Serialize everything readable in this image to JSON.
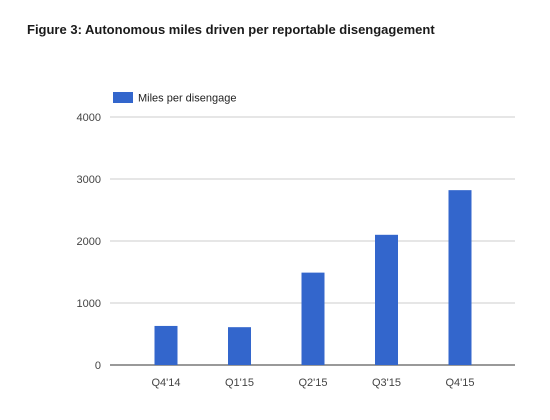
{
  "title": "Figure 3: Autonomous miles driven per reportable disengagement",
  "chart_data": {
    "type": "bar",
    "title": "Figure 3: Autonomous miles driven per reportable disengagement",
    "categories": [
      "Q4'14",
      "Q1'15",
      "Q2'15",
      "Q3'15",
      "Q4'15"
    ],
    "series": [
      {
        "name": "Miles per disengage",
        "values": [
          630,
          610,
          1490,
          2100,
          2820
        ]
      }
    ],
    "ylim": [
      0,
      4000
    ],
    "yticks": [
      0,
      1000,
      2000,
      3000,
      4000
    ],
    "xlabel": "",
    "ylabel": "",
    "grid": true,
    "legend": "top-left",
    "bar_color": "#3366cc",
    "grid_color": "#cccccc"
  }
}
